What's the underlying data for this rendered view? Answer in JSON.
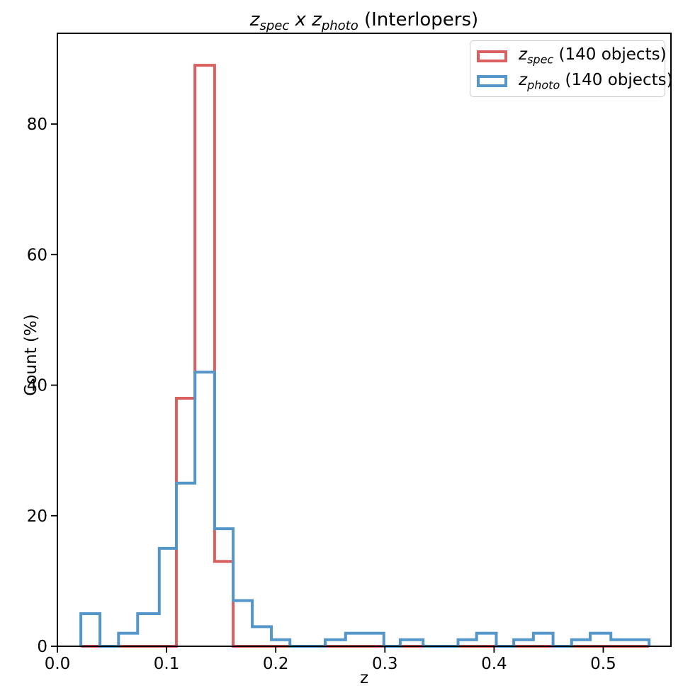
{
  "title": {
    "z1": "z",
    "sub1": "spec",
    "mid": " x ",
    "z2": "z",
    "sub2": "photo",
    "rest": " (Interlopers)"
  },
  "axes": {
    "xlabel": "z",
    "ylabel": "Count (%)"
  },
  "legend": {
    "entries": [
      {
        "z": "z",
        "sub": "spec",
        "rest": " (140 objects)"
      },
      {
        "z": "z",
        "sub": "photo",
        "rest": " (140 objects)"
      }
    ]
  },
  "chart_data": {
    "type": "histogram_step",
    "title": "z_spec x z_photo (Interlopers)",
    "xlabel": "z",
    "ylabel": "Count (%)",
    "xlim": [
      0,
      0.562
    ],
    "ylim": [
      0,
      93.9
    ],
    "grid": false,
    "legend_position": "upper right",
    "xticks": [
      {
        "v": 0.0,
        "label": "0.0"
      },
      {
        "v": 0.1,
        "label": "0.1"
      },
      {
        "v": 0.2,
        "label": "0.2"
      },
      {
        "v": 0.3,
        "label": "0.3"
      },
      {
        "v": 0.4,
        "label": "0.4"
      },
      {
        "v": 0.5,
        "label": "0.5"
      }
    ],
    "yticks": [
      {
        "v": 0,
        "label": "0"
      },
      {
        "v": 20,
        "label": "20"
      },
      {
        "v": 40,
        "label": "40"
      },
      {
        "v": 60,
        "label": "60"
      },
      {
        "v": 80,
        "label": "80"
      }
    ],
    "series": [
      {
        "name": "z_spec (140 objects)",
        "total_objects": 140,
        "color": "#d9605f",
        "linewidth": 4,
        "bin_edges": [
          0.0215,
          0.109,
          0.126,
          0.144,
          0.161,
          0.542
        ],
        "counts": [
          0,
          38,
          89,
          13,
          0
        ]
      },
      {
        "name": "z_photo (140 objects)",
        "total_objects": 140,
        "color": "#5496c9",
        "linewidth": 4,
        "bin_edges": [
          0.0215,
          0.039,
          0.056,
          0.0735,
          0.0933,
          0.109,
          0.126,
          0.144,
          0.161,
          0.1785,
          0.196,
          0.213,
          0.2453,
          0.264,
          0.2815,
          0.299,
          0.314,
          0.335,
          0.367,
          0.384,
          0.402,
          0.418,
          0.436,
          0.454,
          0.471,
          0.488,
          0.507,
          0.5245,
          0.542
        ],
        "counts": [
          5,
          0,
          2,
          5,
          15,
          25,
          42,
          18,
          7,
          3,
          1,
          0,
          1,
          2,
          2,
          0,
          1,
          0,
          1,
          2,
          0,
          1,
          2,
          0,
          1,
          2,
          1,
          1
        ]
      }
    ]
  }
}
